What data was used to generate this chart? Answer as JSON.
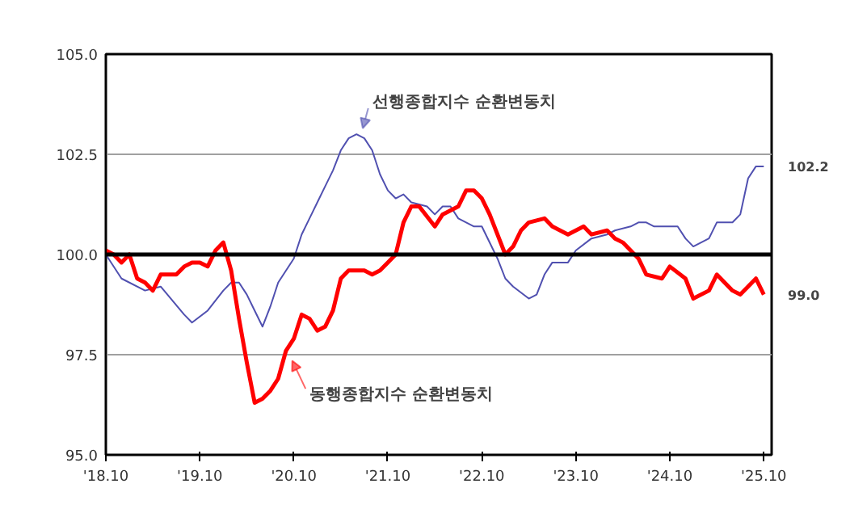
{
  "chart_data": {
    "type": "line",
    "xlim": [
      "2018-10",
      "2025-11"
    ],
    "ylim": [
      95,
      105
    ],
    "xticks": [
      {
        "value": "2018-10",
        "label": "'18.10"
      },
      {
        "value": "2019-10",
        "label": "'19.10"
      },
      {
        "value": "2020-10",
        "label": "'20.10"
      },
      {
        "value": "2021-10",
        "label": "'21.10"
      },
      {
        "value": "2022-10",
        "label": "'22.10"
      },
      {
        "value": "2023-10",
        "label": "'23.10"
      },
      {
        "value": "2024-10",
        "label": "'24.10"
      },
      {
        "value": "2025-10",
        "label": "'25.10"
      }
    ],
    "yticks": [
      {
        "value": 95,
        "label": "95.0"
      },
      {
        "value": 97.5,
        "label": "97.5"
      },
      {
        "value": 100,
        "label": "100.0"
      },
      {
        "value": 102.5,
        "label": "102.5"
      },
      {
        "value": 105,
        "label": "105.0"
      }
    ],
    "grid": "y",
    "marker": "none",
    "line_style": "solid",
    "ref_lines": [
      {
        "axis": "y",
        "value": 100,
        "color": "#000000"
      }
    ],
    "series": [
      {
        "name": "선행종합지수 순환변동치",
        "color": "#5050b0",
        "x": [
          "2018-10",
          "2018-12",
          "2019-03",
          "2019-05",
          "2019-08",
          "2019-09",
          "2019-11",
          "2020-01",
          "2020-02",
          "2020-03",
          "2020-04",
          "2020-05",
          "2020-06",
          "2020-07",
          "2020-08",
          "2020-10",
          "2020-11",
          "2020-12",
          "2021-01",
          "2021-02",
          "2021-03",
          "2021-04",
          "2021-05",
          "2021-06",
          "2021-07",
          "2021-08",
          "2021-09",
          "2021-10",
          "2021-11",
          "2021-12",
          "2022-01",
          "2022-03",
          "2022-04",
          "2022-05",
          "2022-06",
          "2022-07",
          "2022-09",
          "2022-10",
          "2022-12",
          "2023-01",
          "2023-02",
          "2023-04",
          "2023-05",
          "2023-06",
          "2023-07",
          "2023-09",
          "2023-10",
          "2023-12",
          "2024-02",
          "2024-03",
          "2024-05",
          "2024-06",
          "2024-07",
          "2024-08",
          "2024-11",
          "2024-12",
          "2025-01",
          "2025-03",
          "2025-04",
          "2025-06",
          "2025-07",
          "2025-08",
          "2025-09",
          "2025-10"
        ],
        "values": [
          100.0,
          99.4,
          99.1,
          99.2,
          98.5,
          98.3,
          98.6,
          99.1,
          99.3,
          99.3,
          99.0,
          98.6,
          98.2,
          98.7,
          99.3,
          99.9,
          100.5,
          100.9,
          101.3,
          101.7,
          102.1,
          102.6,
          102.9,
          103.0,
          102.9,
          102.6,
          102.0,
          101.6,
          101.4,
          101.5,
          101.3,
          101.2,
          101.0,
          101.2,
          101.2,
          100.9,
          100.7,
          100.7,
          99.9,
          99.4,
          99.2,
          98.9,
          99.0,
          99.5,
          99.8,
          99.8,
          100.1,
          100.4,
          100.5,
          100.6,
          100.7,
          100.8,
          100.8,
          100.7,
          100.7,
          100.4,
          100.2,
          100.4,
          100.8,
          100.8,
          101.0,
          101.9,
          102.2,
          102.2
        ],
        "value_labels": [
          null,
          null,
          null,
          null,
          null,
          null,
          null,
          null,
          null,
          null,
          null,
          null,
          null,
          null,
          null,
          null,
          null,
          null,
          null,
          null,
          null,
          null,
          null,
          null,
          null,
          null,
          null,
          null,
          null,
          null,
          null,
          null,
          null,
          null,
          null,
          null,
          null,
          null,
          null,
          null,
          null,
          null,
          null,
          null,
          null,
          null,
          null,
          null,
          null,
          null,
          null,
          null,
          null,
          null,
          null,
          null,
          null,
          null,
          null,
          null,
          null,
          null,
          null,
          "102.2"
        ]
      },
      {
        "name": "동행종합지수 순환변동치",
        "color": "#ff0000",
        "x": [
          "2018-10",
          "2018-11",
          "2018-12",
          "2019-01",
          "2019-02",
          "2019-03",
          "2019-04",
          "2019-05",
          "2019-06",
          "2019-07",
          "2019-08",
          "2019-09",
          "2019-10",
          "2019-11",
          "2019-12",
          "2020-01",
          "2020-02",
          "2020-03",
          "2020-04",
          "2020-05",
          "2020-06",
          "2020-07",
          "2020-08",
          "2020-09",
          "2020-10",
          "2020-11",
          "2020-12",
          "2021-01",
          "2021-02",
          "2021-03",
          "2021-04",
          "2021-05",
          "2021-06",
          "2021-07",
          "2021-08",
          "2021-09",
          "2021-10",
          "2021-11",
          "2021-12",
          "2022-01",
          "2022-02",
          "2022-04",
          "2022-05",
          "2022-07",
          "2022-08",
          "2022-09",
          "2022-10",
          "2022-11",
          "2023-01",
          "2023-02",
          "2023-03",
          "2023-04",
          "2023-06",
          "2023-07",
          "2023-09",
          "2023-11",
          "2023-12",
          "2024-02",
          "2024-03",
          "2024-04",
          "2024-06",
          "2024-07",
          "2024-09",
          "2024-10",
          "2024-12",
          "2025-01",
          "2025-03",
          "2025-04",
          "2025-06",
          "2025-07",
          "2025-09",
          "2025-10"
        ],
        "values": [
          100.1,
          100.0,
          99.8,
          100.0,
          99.4,
          99.3,
          99.1,
          99.5,
          99.5,
          99.5,
          99.7,
          99.8,
          99.8,
          99.7,
          100.1,
          100.3,
          99.6,
          98.4,
          97.3,
          96.3,
          96.4,
          96.6,
          96.9,
          97.6,
          97.9,
          98.5,
          98.4,
          98.1,
          98.2,
          98.6,
          99.4,
          99.6,
          99.6,
          99.6,
          99.5,
          99.6,
          99.8,
          100.0,
          100.8,
          101.2,
          101.2,
          100.7,
          101.0,
          101.2,
          101.6,
          101.6,
          101.4,
          101.0,
          100.0,
          100.2,
          100.6,
          100.8,
          100.9,
          100.7,
          100.5,
          100.7,
          100.5,
          100.6,
          100.4,
          100.3,
          99.9,
          99.5,
          99.4,
          99.7,
          99.4,
          98.9,
          99.1,
          99.5,
          99.1,
          99.0,
          99.4,
          99.0
        ],
        "value_labels": [
          null,
          null,
          null,
          null,
          null,
          null,
          null,
          null,
          null,
          null,
          null,
          null,
          null,
          null,
          null,
          null,
          null,
          null,
          null,
          null,
          null,
          null,
          null,
          null,
          null,
          null,
          null,
          null,
          null,
          null,
          null,
          null,
          null,
          null,
          null,
          null,
          null,
          null,
          null,
          null,
          null,
          null,
          null,
          null,
          null,
          null,
          null,
          null,
          null,
          null,
          null,
          null,
          null,
          null,
          null,
          null,
          null,
          null,
          null,
          null,
          null,
          null,
          null,
          null,
          null,
          null,
          null,
          null,
          null,
          null,
          null,
          "99.0"
        ]
      }
    ]
  }
}
